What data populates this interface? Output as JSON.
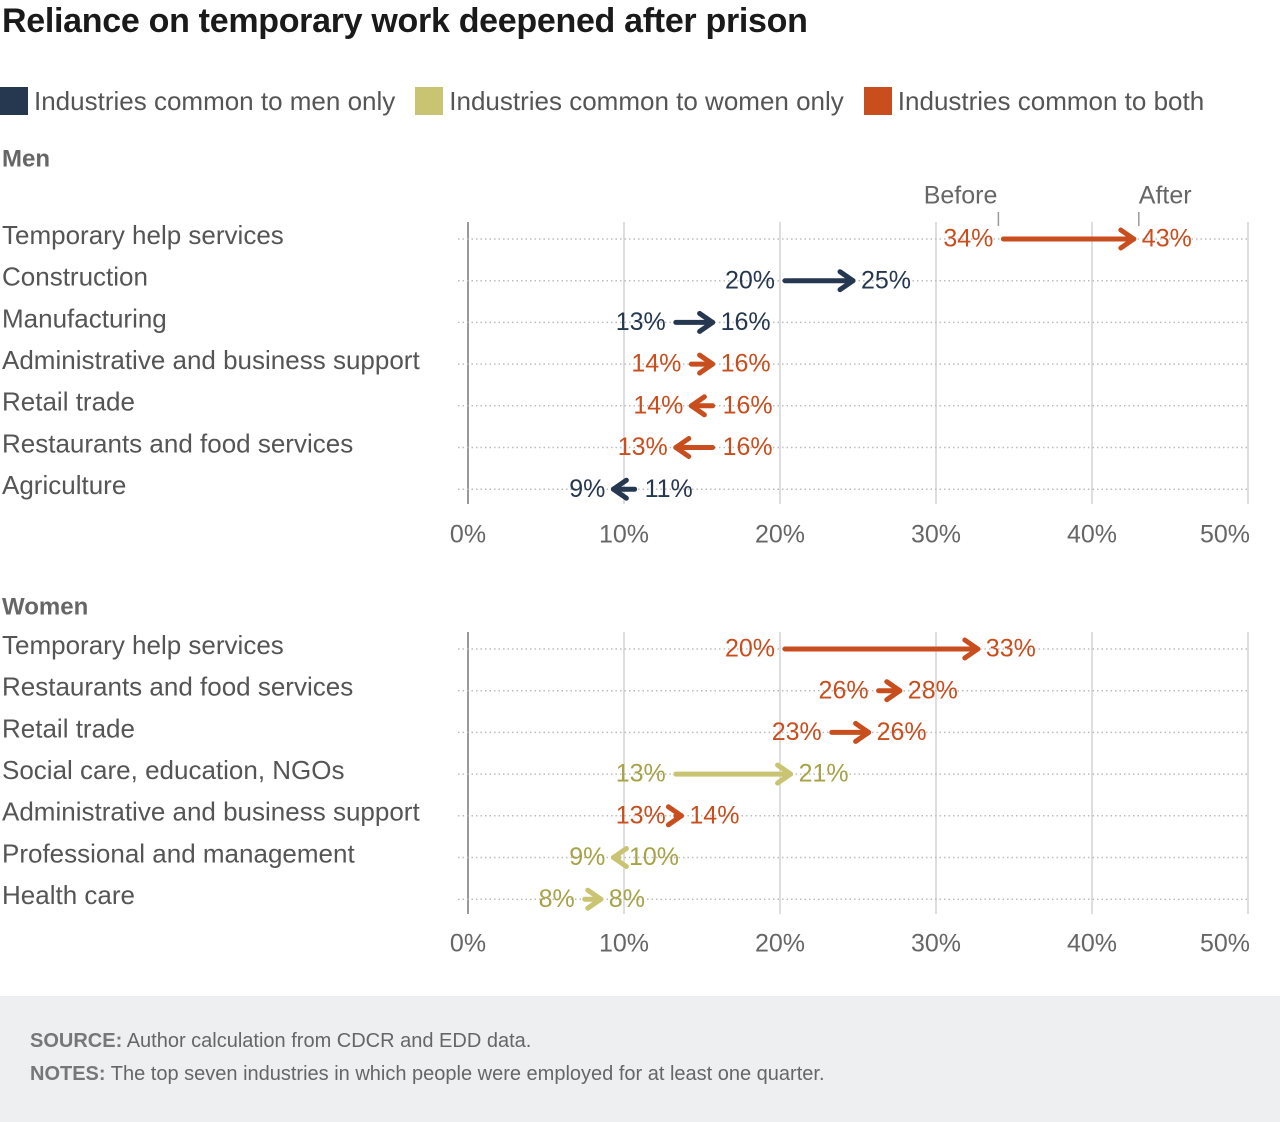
{
  "title": "Reliance on temporary work deepened after prison",
  "legend": [
    {
      "label": "Industries common to men only",
      "color": "#263750"
    },
    {
      "label": "Industries common to women only",
      "color": "#c8c471"
    },
    {
      "label": "Industries common to both",
      "color": "#c94e1e"
    }
  ],
  "chart_data": [
    {
      "type": "arrow-dot",
      "title": "Men",
      "before_label": "Before",
      "after_label": "After",
      "xlim": [
        0,
        50
      ],
      "ticks": [
        0,
        10,
        20,
        30,
        40,
        50
      ],
      "tick_labels": [
        "0%",
        "10%",
        "20%",
        "30%",
        "40%",
        "50%"
      ],
      "grid": true,
      "rows": [
        {
          "category": "Temporary help services",
          "group": "both",
          "before": 34,
          "after": 43,
          "before_label": "34%",
          "after_label": "43%"
        },
        {
          "category": "Construction",
          "group": "men",
          "before": 20,
          "after": 25,
          "before_label": "20%",
          "after_label": "25%"
        },
        {
          "category": "Manufacturing",
          "group": "men",
          "before": 13,
          "after": 16,
          "before_label": "13%",
          "after_label": "16%"
        },
        {
          "category": "Administrative and business support",
          "group": "both",
          "before": 14,
          "after": 16,
          "before_label": "14%",
          "after_label": "16%"
        },
        {
          "category": "Retail trade",
          "group": "both",
          "before": 16,
          "after": 14,
          "before_label": "16%",
          "after_label": "14%"
        },
        {
          "category": "Restaurants and food services",
          "group": "both",
          "before": 16,
          "after": 13,
          "before_label": "16%",
          "after_label": "13%"
        },
        {
          "category": "Agriculture",
          "group": "men",
          "before": 11,
          "after": 9,
          "before_label": "11%",
          "after_label": "9%"
        }
      ]
    },
    {
      "type": "arrow-dot",
      "title": "Women",
      "xlim": [
        0,
        50
      ],
      "ticks": [
        0,
        10,
        20,
        30,
        40,
        50
      ],
      "tick_labels": [
        "0%",
        "10%",
        "20%",
        "30%",
        "40%",
        "50%"
      ],
      "grid": true,
      "rows": [
        {
          "category": "Temporary help services",
          "group": "both",
          "before": 20,
          "after": 33,
          "before_label": "20%",
          "after_label": "33%"
        },
        {
          "category": "Restaurants and food services",
          "group": "both",
          "before": 26,
          "after": 28,
          "before_label": "26%",
          "after_label": "28%"
        },
        {
          "category": "Retail trade",
          "group": "both",
          "before": 23,
          "after": 26,
          "before_label": "23%",
          "after_label": "26%"
        },
        {
          "category": "Social care, education, NGOs",
          "group": "women",
          "before": 13,
          "after": 21,
          "before_label": "13%",
          "after_label": "21%"
        },
        {
          "category": "Administrative and business support",
          "group": "both",
          "before": 13,
          "after": 14,
          "before_label": "13%",
          "after_label": "14%"
        },
        {
          "category": "Professional and management",
          "group": "women",
          "before": 10,
          "after": 9,
          "before_label": "10%",
          "after_label": "9%"
        },
        {
          "category": "Health care",
          "group": "women",
          "before": 8,
          "after": 8,
          "before_label": "8%",
          "after_label": "8%"
        }
      ]
    }
  ],
  "colors": {
    "men": "#263750",
    "women": "#c8c471",
    "both": "#c94e1e",
    "women_text": "#a7a247"
  },
  "footer": {
    "source_label": "SOURCE:",
    "source_text": " Author calculation from CDCR and EDD data.",
    "notes_label": "NOTES:",
    "notes_text": " The top seven industries in which people were employed for at least one quarter."
  }
}
